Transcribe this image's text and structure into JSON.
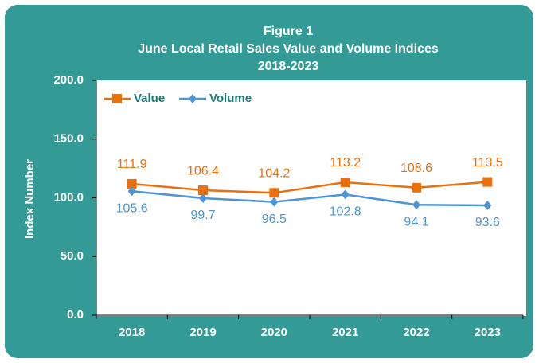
{
  "chart_data": {
    "type": "line",
    "title": "Figure 1",
    "subtitle": "June Local Retail Sales Value and Volume Indices",
    "period": "2018-2023",
    "y_label": "Index Number",
    "categories": [
      "2018",
      "2019",
      "2020",
      "2021",
      "2022",
      "2023"
    ],
    "series": [
      {
        "name": "Value",
        "color": "#e8700f",
        "marker": "square",
        "values": [
          111.9,
          106.4,
          104.2,
          113.2,
          108.6,
          113.5
        ]
      },
      {
        "name": "Volume",
        "color": "#4f94d4",
        "marker": "diamond",
        "values": [
          105.6,
          99.7,
          96.5,
          102.8,
          94.1,
          93.6
        ]
      }
    ],
    "ylim": [
      0,
      200
    ],
    "yticks": [
      {
        "value": 0,
        "label": "0.0"
      },
      {
        "value": 50,
        "label": "50.0"
      },
      {
        "value": 100,
        "label": "100.0"
      },
      {
        "value": 150,
        "label": "150.0"
      },
      {
        "value": 200,
        "label": "200.0"
      }
    ],
    "legend": "top-left",
    "background": "#349a96"
  }
}
